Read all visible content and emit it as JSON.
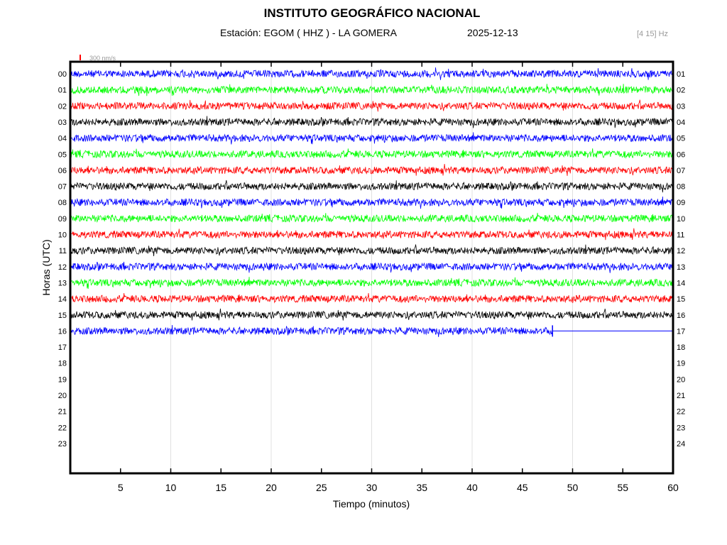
{
  "chart_data": {
    "type": "line",
    "title": "INSTITUTO GEOGRÁFICO NACIONAL",
    "station_label": "Estación:  EGOM ( HHZ ) - LA GOMERA",
    "date": "2025-12-13",
    "filter": "[4 15] Hz",
    "scale_label": "300 nm/s",
    "xlabel": "Tiempo (minutos)",
    "ylabel": "Horas (UTC)",
    "xlim": [
      0,
      60
    ],
    "x_ticks": [
      5,
      10,
      15,
      20,
      25,
      30,
      35,
      40,
      45,
      50,
      55,
      60
    ],
    "x_ticks_labels": [
      "5",
      "10",
      "15",
      "20",
      "25",
      "30",
      "35",
      "40",
      "45",
      "50",
      "55",
      "60"
    ],
    "left_hour_labels": [
      "00",
      "01",
      "02",
      "03",
      "04",
      "05",
      "06",
      "07",
      "08",
      "09",
      "10",
      "11",
      "12",
      "13",
      "14",
      "15",
      "16",
      "17",
      "18",
      "19",
      "20",
      "21",
      "22",
      "23"
    ],
    "right_hour_labels": [
      "01",
      "02",
      "03",
      "04",
      "05",
      "06",
      "07",
      "08",
      "09",
      "10",
      "11",
      "12",
      "13",
      "14",
      "15",
      "16",
      "17",
      "18",
      "19",
      "20",
      "21",
      "22",
      "23",
      "24"
    ],
    "trace_colors": [
      "#0000ff",
      "#00ff00",
      "#ff0000",
      "#000000"
    ],
    "traces_recorded_hours": 17,
    "last_trace_end_minute": 48,
    "grid": "vertical every 10 minutes"
  }
}
